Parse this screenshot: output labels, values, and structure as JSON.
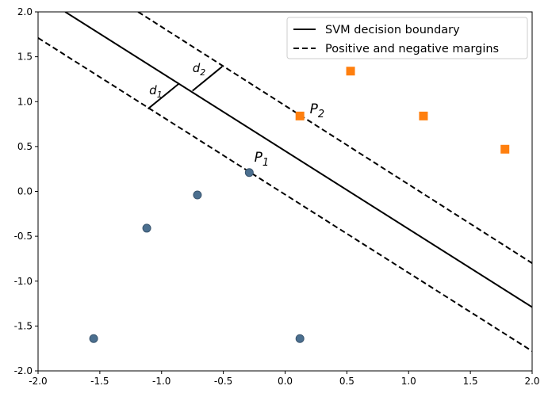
{
  "chart_data": {
    "type": "scatter",
    "title": "",
    "xlabel": "",
    "ylabel": "",
    "xlim": [
      -2.0,
      2.0
    ],
    "ylim": [
      -2.0,
      2.0
    ],
    "grid": false,
    "xticks": [
      "-2.0",
      "-1.5",
      "-1.0",
      "-0.5",
      "0.0",
      "0.5",
      "1.0",
      "1.5",
      "2.0"
    ],
    "yticks": [
      "-2.0",
      "-1.5",
      "-1.0",
      "-0.5",
      "0.0",
      "0.5",
      "1.0",
      "1.5",
      "2.0"
    ],
    "series": [
      {
        "marker": "circle",
        "color": "#4b6f8f",
        "x": [
          -1.55,
          -1.12,
          -0.71,
          -0.29,
          0.12
        ],
        "y": [
          -1.64,
          -0.41,
          -0.04,
          0.21,
          -1.64
        ]
      },
      {
        "marker": "square",
        "color": "#ff7f0e",
        "x": [
          0.12,
          0.53,
          1.12,
          1.78
        ],
        "y": [
          0.84,
          1.34,
          0.84,
          0.47
        ]
      }
    ],
    "lines": [
      {
        "name": "SVM decision boundary",
        "style": "solid",
        "color": "#000000",
        "points": [
          [
            -1.78,
            2.0
          ],
          [
            2.0,
            -1.29
          ]
        ]
      },
      {
        "name": "Positive and negative margins",
        "style": "dashed",
        "color": "#000000",
        "points": [
          [
            -1.19,
            2.0
          ],
          [
            2.0,
            -0.8
          ]
        ]
      },
      {
        "style": "dashed",
        "color": "#000000",
        "points": [
          [
            -2.0,
            1.71
          ],
          [
            2.0,
            -1.78
          ]
        ]
      }
    ],
    "distance_segments": [
      {
        "points": [
          [
            -1.11,
            0.92
          ],
          [
            -0.86,
            1.2
          ]
        ]
      },
      {
        "points": [
          [
            -0.75,
            1.12
          ],
          [
            -0.51,
            1.39
          ]
        ]
      }
    ],
    "annotations": [
      {
        "main": "d",
        "sub": "1",
        "x": -1.1,
        "y": 1.08,
        "size": "small"
      },
      {
        "main": "d",
        "sub": "2",
        "x": -0.75,
        "y": 1.33,
        "size": "small"
      },
      {
        "main": "P",
        "sub": "2",
        "x": 0.2,
        "y": 0.87,
        "size": "large"
      },
      {
        "main": "P",
        "sub": "1",
        "x": -0.25,
        "y": 0.33,
        "size": "large"
      }
    ],
    "legend": {
      "placement": "top-right",
      "entries": [
        {
          "label": "SVM decision boundary",
          "style": "solid"
        },
        {
          "label": "Positive and negative margins",
          "style": "dashed"
        }
      ]
    }
  }
}
